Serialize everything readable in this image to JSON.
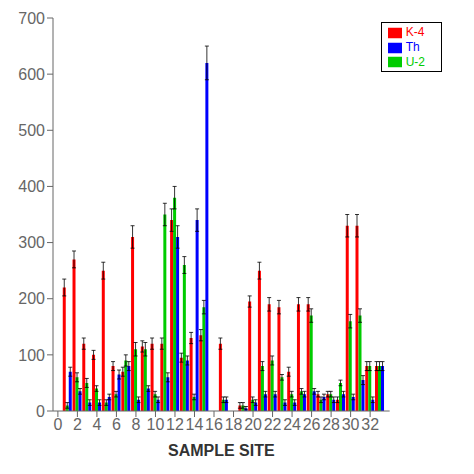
{
  "chart_data": {
    "type": "bar",
    "xlabel": "SAMPLE SITE",
    "x": [
      1,
      2,
      3,
      4,
      5,
      6,
      7,
      8,
      9,
      10,
      11,
      12,
      13,
      14,
      15,
      17,
      19,
      20,
      21,
      22,
      23,
      24,
      25,
      26,
      27,
      28,
      29,
      30,
      31,
      32,
      33
    ],
    "series": [
      {
        "name": "K-4",
        "color": "#ff0000",
        "values": [
          220,
          270,
          120,
          100,
          250,
          80,
          70,
          310,
          115,
          120,
          120,
          340,
          95,
          130,
          135,
          120,
          10,
          195,
          250,
          190,
          185,
          70,
          190,
          190,
          30,
          30,
          20,
          330,
          330,
          80,
          80
        ],
        "errors": [
          15,
          15,
          10,
          8,
          15,
          8,
          8,
          20,
          10,
          10,
          10,
          20,
          8,
          10,
          10,
          10,
          5,
          10,
          15,
          12,
          12,
          8,
          12,
          12,
          5,
          5,
          5,
          20,
          20,
          8,
          8
        ]
      },
      {
        "name": "U-2",
        "color": "#00cc00",
        "values": [
          10,
          60,
          50,
          40,
          15,
          30,
          90,
          110,
          110,
          30,
          350,
          380,
          260,
          25,
          185,
          20,
          10,
          20,
          80,
          90,
          60,
          30,
          35,
          170,
          20,
          30,
          50,
          160,
          170,
          80,
          80
        ],
        "errors": [
          5,
          8,
          8,
          5,
          5,
          5,
          10,
          12,
          12,
          5,
          20,
          20,
          15,
          5,
          12,
          5,
          5,
          5,
          8,
          8,
          5,
          5,
          5,
          12,
          5,
          5,
          5,
          12,
          12,
          8,
          8
        ]
      },
      {
        "name": "Th",
        "color": "#0000ff",
        "values": [
          70,
          35,
          15,
          15,
          25,
          65,
          80,
          20,
          40,
          20,
          60,
          310,
          90,
          340,
          620,
          20,
          5,
          15,
          30,
          30,
          15,
          15,
          30,
          35,
          25,
          20,
          30,
          25,
          55,
          20,
          80
        ],
        "errors": [
          8,
          5,
          5,
          5,
          5,
          8,
          8,
          5,
          5,
          5,
          8,
          20,
          8,
          20,
          30,
          5,
          3,
          5,
          5,
          5,
          5,
          5,
          5,
          5,
          5,
          5,
          5,
          5,
          8,
          5,
          8
        ]
      }
    ],
    "xlim": [
      -0.5,
      34
    ],
    "xticks": [
      0,
      2,
      4,
      6,
      8,
      10,
      12,
      14,
      16,
      18,
      20,
      22,
      24,
      26,
      28,
      30,
      32
    ],
    "ylim": [
      0,
      700
    ],
    "yticks": [
      0,
      100,
      200,
      300,
      400,
      500,
      600,
      700
    ],
    "legend": "upper right",
    "grid": false
  }
}
